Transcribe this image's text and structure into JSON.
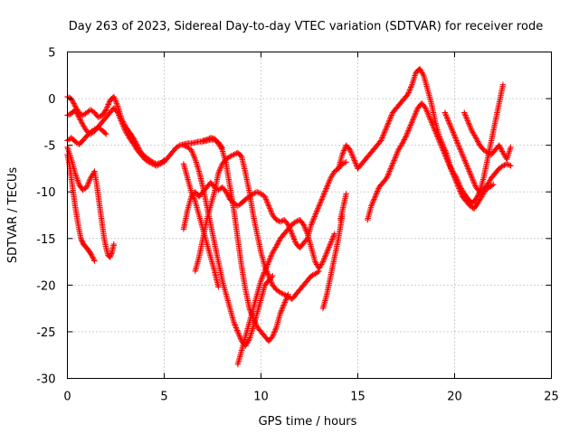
{
  "chart_data": {
    "type": "scatter",
    "title": "Day 263 of 2023, Sidereal Day-to-day VTEC variation (SDTVAR) for receiver rode",
    "xlabel": "GPS time / hours",
    "ylabel": "SDTVAR / TECUs",
    "xlim": [
      0,
      25
    ],
    "ylim": [
      -30,
      5
    ],
    "xticks": [
      0,
      5,
      10,
      15,
      20,
      25
    ],
    "yticks": [
      -30,
      -25,
      -20,
      -15,
      -10,
      -5,
      0,
      5
    ],
    "grid": true,
    "marker": "+",
    "color": "#ff0000",
    "series": [
      {
        "x": [
          0.0,
          0.2,
          0.4,
          0.6,
          0.8,
          1.0,
          1.2,
          1.4,
          1.6,
          1.8,
          2.0,
          2.2,
          2.4,
          2.6,
          2.8,
          3.0,
          3.2,
          3.4,
          3.6,
          3.8,
          4.0,
          4.2,
          4.4,
          4.6,
          4.8,
          5.0,
          5.2,
          5.4,
          5.6,
          5.8,
          6.0,
          6.2,
          6.4,
          6.6,
          6.8,
          7.0,
          7.2,
          7.4,
          7.6,
          7.8,
          8.0
        ],
        "y": [
          0.2,
          0.0,
          -0.8,
          -1.5,
          -1.8,
          -1.5,
          -1.2,
          -1.5,
          -2.0,
          -1.8,
          -1.2,
          -0.2,
          0.2,
          -0.8,
          -2.2,
          -3.0,
          -3.6,
          -4.2,
          -5.0,
          -5.8,
          -6.2,
          -6.5,
          -6.8,
          -7.0,
          -6.9,
          -6.8,
          -6.3,
          -5.8,
          -5.3,
          -5.0,
          -4.9,
          -4.8,
          -4.8,
          -4.7,
          -4.6,
          -4.6,
          -4.5,
          -4.4,
          -4.4,
          -4.7,
          -5.3
        ]
      },
      {
        "x": [
          0.0,
          0.2,
          0.4,
          0.6,
          0.8,
          1.0,
          1.2,
          1.4,
          1.6,
          1.8,
          2.0,
          2.2,
          2.4,
          2.6,
          2.8,
          3.0,
          3.2,
          3.4,
          3.6,
          3.8,
          4.0,
          4.2,
          4.4,
          4.6,
          4.8,
          5.0
        ],
        "y": [
          -1.8,
          -1.6,
          -1.2,
          -2.0,
          -2.8,
          -3.5,
          -3.8,
          -3.5,
          -3.0,
          -2.5,
          -2.0,
          -1.5,
          -1.0,
          -1.5,
          -2.5,
          -3.5,
          -4.2,
          -4.8,
          -5.5,
          -6.0,
          -6.5,
          -6.8,
          -7.0,
          -7.2,
          -7.0,
          -6.6
        ]
      },
      {
        "x": [
          0.0,
          0.1,
          0.2,
          0.3,
          0.4,
          0.5,
          0.6,
          0.7,
          0.8,
          0.9,
          1.0,
          1.1,
          1.2,
          1.3,
          1.4
        ],
        "y": [
          -6.0,
          -7.0,
          -8.5,
          -10.0,
          -11.5,
          -12.8,
          -14.0,
          -15.0,
          -15.5,
          -15.8,
          -16.0,
          -16.3,
          -16.6,
          -17.0,
          -17.4
        ]
      },
      {
        "x": [
          0.0,
          0.2,
          0.4,
          0.6,
          0.8,
          1.0,
          1.2,
          1.4,
          1.5,
          1.6,
          1.7,
          1.8,
          1.9,
          2.0,
          2.1,
          2.2,
          2.3,
          2.4
        ],
        "y": [
          -5.2,
          -6.5,
          -8.0,
          -9.2,
          -9.8,
          -9.5,
          -8.5,
          -7.8,
          -9.0,
          -10.5,
          -12.0,
          -13.5,
          -15.0,
          -16.0,
          -16.8,
          -17.0,
          -16.5,
          -15.6
        ]
      },
      {
        "x": [
          0.0,
          0.2,
          0.4,
          0.6,
          0.8,
          1.0,
          1.2,
          1.4,
          1.6,
          1.8,
          2.0
        ],
        "y": [
          -4.5,
          -4.2,
          -4.6,
          -4.9,
          -4.5,
          -4.0,
          -3.6,
          -3.3,
          -3.1,
          -3.4,
          -3.8
        ]
      },
      {
        "x": [
          6.0,
          6.2,
          6.4,
          6.6,
          6.8,
          7.0,
          7.2,
          7.4,
          7.6,
          7.8,
          8.0,
          8.2,
          8.4,
          8.6,
          8.8,
          9.0,
          9.2,
          9.4,
          9.6,
          9.8,
          10.0,
          10.2,
          10.4,
          10.6,
          10.8,
          11.0,
          11.2,
          11.4,
          11.6,
          11.8,
          12.0,
          12.2,
          12.4,
          12.6,
          12.8,
          13.0,
          13.2,
          13.4,
          13.6,
          13.8,
          14.0,
          14.2,
          14.4
        ],
        "y": [
          -14.0,
          -12.0,
          -10.5,
          -10.0,
          -10.5,
          -10.0,
          -9.5,
          -9.0,
          -9.5,
          -9.8,
          -9.5,
          -10.0,
          -10.8,
          -11.2,
          -11.5,
          -11.2,
          -10.8,
          -10.5,
          -10.2,
          -10.0,
          -10.2,
          -10.5,
          -11.5,
          -12.5,
          -13.0,
          -13.2,
          -13.0,
          -13.5,
          -14.5,
          -15.5,
          -16.0,
          -15.5,
          -15.0,
          -13.5,
          -12.5,
          -11.5,
          -10.5,
          -9.5,
          -8.5,
          -7.8,
          -7.5,
          -7.0,
          -6.8
        ]
      },
      {
        "x": [
          6.0,
          6.2,
          6.4,
          6.6,
          6.8,
          7.0,
          7.2,
          7.4,
          7.6,
          7.8,
          8.0,
          8.2,
          8.4,
          8.6,
          8.8,
          9.0,
          9.2,
          9.4,
          9.6,
          9.8,
          10.0,
          10.2,
          10.4,
          10.6
        ],
        "y": [
          -5.0,
          -5.2,
          -5.5,
          -6.5,
          -7.8,
          -9.5,
          -11.5,
          -13.5,
          -15.5,
          -17.5,
          -19.5,
          -21.0,
          -22.5,
          -24.0,
          -25.0,
          -26.0,
          -26.5,
          -25.8,
          -24.5,
          -23.0,
          -21.5,
          -20.0,
          -19.5,
          -19.0
        ]
      },
      {
        "x": [
          6.6,
          6.8,
          7.0,
          7.2,
          7.4,
          7.6,
          7.8,
          8.0,
          8.2,
          8.4,
          8.6,
          8.8,
          9.0,
          9.2,
          9.4,
          9.6,
          9.8,
          10.0,
          10.2,
          10.4,
          10.6,
          10.8,
          11.0,
          11.2,
          11.4,
          11.6,
          11.8,
          12.0,
          12.2,
          12.4,
          12.6,
          12.8,
          13.0
        ],
        "y": [
          -18.5,
          -17.0,
          -15.0,
          -13.0,
          -11.5,
          -10.0,
          -8.0,
          -7.0,
          -6.5,
          -6.2,
          -6.0,
          -5.8,
          -6.2,
          -8.0,
          -10.0,
          -12.5,
          -14.5,
          -16.5,
          -18.0,
          -19.0,
          -20.0,
          -20.5,
          -20.8,
          -21.0,
          -21.2,
          -21.5,
          -21.0,
          -20.5,
          -20.0,
          -19.5,
          -19.0,
          -18.8,
          -18.5
        ]
      },
      {
        "x": [
          7.0,
          7.2,
          7.4,
          7.6,
          7.8,
          8.0,
          8.2,
          8.4,
          8.6,
          8.8,
          9.0,
          9.2,
          9.4,
          9.6,
          9.8,
          10.0,
          10.2,
          10.4,
          10.6,
          10.8,
          11.0,
          11.2,
          11.4
        ],
        "y": [
          -4.5,
          -4.4,
          -4.2,
          -4.3,
          -4.8,
          -5.5,
          -7.0,
          -9.5,
          -12.0,
          -15.0,
          -18.0,
          -20.5,
          -22.5,
          -23.5,
          -24.5,
          -25.0,
          -25.5,
          -26.0,
          -25.5,
          -24.5,
          -23.0,
          -22.0,
          -21.0
        ]
      },
      {
        "x": [
          6.0,
          6.2,
          6.4,
          6.6,
          6.8,
          7.0,
          7.2,
          7.4,
          7.6,
          7.8
        ],
        "y": [
          -7.0,
          -8.5,
          -10.0,
          -11.0,
          -12.5,
          -14.0,
          -15.5,
          -17.0,
          -18.5,
          -20.2
        ]
      },
      {
        "x": [
          8.8,
          9.0,
          9.2,
          9.4,
          9.6,
          9.8,
          10.0,
          10.2,
          10.4,
          10.6,
          10.8,
          11.0,
          11.2,
          11.4,
          11.6,
          11.8,
          12.0,
          12.2,
          12.4,
          12.6,
          12.8,
          13.0,
          13.2,
          13.4,
          13.6,
          13.8
        ],
        "y": [
          -28.5,
          -27.0,
          -25.5,
          -24.0,
          -22.5,
          -21.0,
          -19.5,
          -18.5,
          -17.5,
          -16.5,
          -15.8,
          -15.0,
          -14.5,
          -14.0,
          -13.5,
          -13.2,
          -13.0,
          -13.5,
          -14.5,
          -16.0,
          -17.5,
          -18.2,
          -17.5,
          -16.5,
          -15.5,
          -14.5
        ]
      },
      {
        "x": [
          13.2,
          13.4,
          13.6,
          13.8,
          14.0,
          14.2
        ],
        "y": [
          -22.5,
          -21.0,
          -19.0,
          -17.0,
          -15.0,
          -12.5
        ]
      },
      {
        "x": [
          14.0,
          14.2,
          14.4,
          14.6,
          14.8,
          15.0,
          15.2,
          15.4,
          15.6,
          15.8,
          16.0,
          16.2,
          16.4,
          16.6,
          16.8,
          17.0,
          17.2,
          17.4,
          17.6,
          17.8,
          18.0,
          18.2,
          18.4,
          18.6,
          18.8,
          19.0,
          19.2,
          19.4,
          19.6,
          19.8,
          20.0,
          20.2,
          20.4,
          20.6,
          20.8,
          21.0,
          21.2,
          21.4,
          21.6,
          21.8,
          22.0
        ],
        "y": [
          -7.5,
          -6.0,
          -5.0,
          -5.5,
          -6.5,
          -7.5,
          -7.0,
          -6.5,
          -6.0,
          -5.5,
          -5.0,
          -4.5,
          -3.5,
          -2.5,
          -1.5,
          -1.0,
          -0.5,
          0.0,
          0.5,
          1.5,
          2.8,
          3.2,
          2.5,
          1.0,
          -0.5,
          -2.5,
          -4.0,
          -5.0,
          -6.0,
          -7.5,
          -8.5,
          -9.5,
          -10.5,
          -11.0,
          -11.5,
          -11.8,
          -11.2,
          -10.5,
          -9.8,
          -9.5,
          -9.2
        ]
      },
      {
        "x": [
          15.5,
          15.7,
          15.9,
          16.1,
          16.3,
          16.5,
          16.7,
          16.9,
          17.1,
          17.3,
          17.5,
          17.7,
          17.9,
          18.1,
          18.3,
          18.5,
          18.7,
          18.9,
          19.1,
          19.3,
          19.5,
          19.7,
          19.9,
          20.1,
          20.3,
          20.5,
          20.7,
          20.9,
          21.1,
          21.3,
          21.5,
          21.7,
          21.9,
          22.1,
          22.3,
          22.5
        ],
        "y": [
          -13.0,
          -11.5,
          -10.5,
          -9.5,
          -9.0,
          -8.5,
          -7.5,
          -6.5,
          -5.5,
          -4.8,
          -4.0,
          -3.0,
          -2.0,
          -1.0,
          -0.5,
          -1.0,
          -2.0,
          -3.0,
          -4.0,
          -5.0,
          -6.0,
          -7.0,
          -7.8,
          -8.5,
          -9.5,
          -10.2,
          -10.8,
          -11.2,
          -10.8,
          -10.0,
          -8.5,
          -6.5,
          -4.5,
          -2.5,
          -0.5,
          1.5
        ]
      },
      {
        "x": [
          19.5,
          19.7,
          19.9,
          20.1,
          20.3,
          20.5,
          20.7,
          20.9,
          21.1,
          21.3,
          21.5,
          21.7,
          21.9,
          22.1,
          22.3,
          22.5,
          22.7,
          22.9
        ],
        "y": [
          -1.5,
          -2.5,
          -3.5,
          -4.5,
          -5.5,
          -6.5,
          -7.5,
          -8.5,
          -9.5,
          -10.0,
          -9.8,
          -9.2,
          -8.5,
          -8.0,
          -7.5,
          -7.2,
          -7.0,
          -7.2
        ]
      },
      {
        "x": [
          20.5,
          20.7,
          20.9,
          21.1,
          21.3,
          21.5,
          21.7,
          21.9,
          22.1,
          22.3,
          22.5,
          22.7,
          22.9
        ],
        "y": [
          -1.5,
          -2.5,
          -3.5,
          -4.2,
          -5.0,
          -5.5,
          -5.8,
          -6.0,
          -5.5,
          -5.0,
          -5.8,
          -6.5,
          -5.2
        ]
      },
      {
        "x": [
          14.1,
          14.4
        ],
        "y": [
          -13.0,
          -10.2
        ]
      }
    ]
  }
}
